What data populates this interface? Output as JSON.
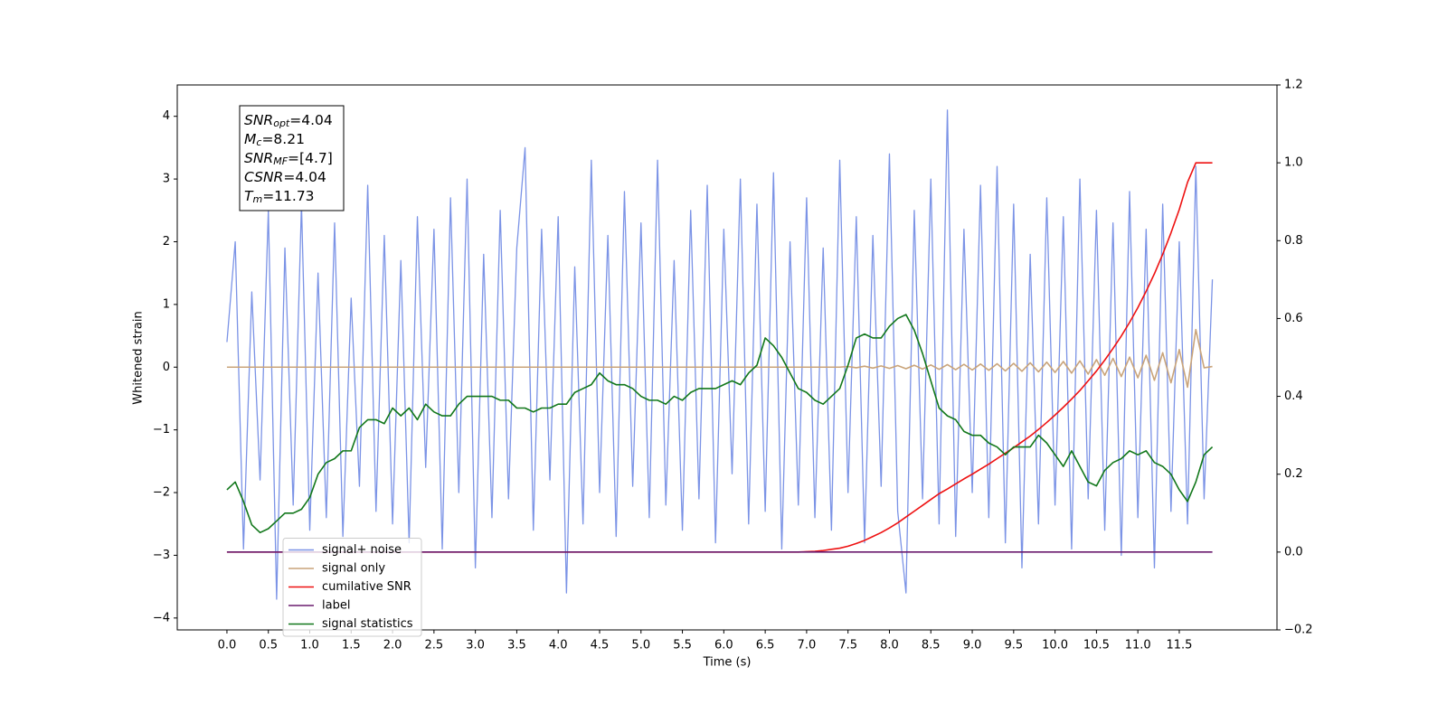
{
  "chart_data": {
    "type": "line",
    "xlabel": "Time (s)",
    "ylabel": "Whitened strain",
    "x": [
      0,
      0.1,
      0.2,
      0.3,
      0.4,
      0.5,
      0.6,
      0.7,
      0.8,
      0.9,
      1.0,
      1.1,
      1.2,
      1.3,
      1.4,
      1.5,
      1.6,
      1.7,
      1.8,
      1.9,
      2.0,
      2.1,
      2.2,
      2.3,
      2.4,
      2.5,
      2.6,
      2.7,
      2.8,
      2.9,
      3.0,
      3.1,
      3.2,
      3.3,
      3.4,
      3.5,
      3.6,
      3.7,
      3.8,
      3.9,
      4.0,
      4.1,
      4.2,
      4.3,
      4.4,
      4.5,
      4.6,
      4.7,
      4.8,
      4.9,
      5.0,
      5.1,
      5.2,
      5.3,
      5.4,
      5.5,
      5.6,
      5.7,
      5.8,
      5.9,
      6.0,
      6.1,
      6.2,
      6.3,
      6.4,
      6.5,
      6.6,
      6.7,
      6.8,
      6.9,
      7.0,
      7.1,
      7.2,
      7.3,
      7.4,
      7.5,
      7.6,
      7.7,
      7.8,
      7.9,
      8.0,
      8.1,
      8.2,
      8.3,
      8.4,
      8.5,
      8.6,
      8.7,
      8.8,
      8.9,
      9.0,
      9.1,
      9.2,
      9.3,
      9.4,
      9.5,
      9.6,
      9.7,
      9.8,
      9.9,
      10.0,
      10.1,
      10.2,
      10.3,
      10.4,
      10.5,
      10.6,
      10.7,
      10.8,
      10.9,
      11.0,
      11.1,
      11.2,
      11.3,
      11.4,
      11.5,
      11.6,
      11.7,
      11.8,
      11.9
    ],
    "series": [
      {
        "name": "signal+ noise",
        "color": "#7b93e6",
        "values": [
          0.4,
          2.0,
          -2.9,
          1.2,
          -1.8,
          2.5,
          -3.7,
          1.9,
          -2.2,
          2.6,
          -2.6,
          1.5,
          -2.4,
          2.3,
          -2.7,
          1.1,
          -1.9,
          2.9,
          -2.3,
          2.1,
          -2.5,
          1.7,
          -2.8,
          2.4,
          -1.6,
          2.2,
          -2.9,
          2.7,
          -2.0,
          3.0,
          -3.2,
          1.8,
          -2.4,
          2.5,
          -2.1,
          1.9,
          3.5,
          -2.6,
          2.2,
          -1.8,
          2.4,
          -3.6,
          1.6,
          -2.5,
          3.3,
          -2.0,
          2.1,
          -2.7,
          2.8,
          -1.9,
          2.3,
          -2.4,
          3.3,
          -2.2,
          1.7,
          -2.6,
          2.5,
          -2.1,
          2.9,
          -2.8,
          2.2,
          -1.7,
          3.0,
          -2.5,
          2.6,
          -2.3,
          3.1,
          -2.9,
          2.0,
          -2.2,
          2.7,
          -2.4,
          1.9,
          -2.6,
          3.3,
          -2.0,
          2.4,
          -2.8,
          2.1,
          -1.9,
          3.4,
          -2.3,
          -3.6,
          2.5,
          -2.1,
          3.0,
          -2.5,
          4.1,
          -2.7,
          2.2,
          -2.0,
          2.9,
          -2.4,
          3.2,
          -2.8,
          2.6,
          -3.2,
          1.8,
          -2.5,
          2.7,
          -2.2,
          2.4,
          -2.9,
          3.0,
          -2.1,
          2.5,
          -2.6,
          2.3,
          -3.0,
          2.8,
          -2.4,
          2.2,
          -3.2,
          2.6,
          -2.3,
          2.0,
          -2.5,
          3.2,
          -2.1,
          1.4
        ]
      },
      {
        "name": "signal only",
        "color": "#c9a47a",
        "values": [
          0,
          0,
          0,
          0,
          0,
          0,
          0,
          0,
          0,
          0,
          0,
          0,
          0,
          0,
          0,
          0,
          0,
          0,
          0,
          0,
          0,
          0,
          0,
          0,
          0,
          0,
          0,
          0,
          0,
          0,
          0,
          0,
          0,
          0,
          0,
          0,
          0,
          0,
          0,
          0,
          0,
          0,
          0,
          0,
          0,
          0,
          0,
          0,
          0,
          0,
          0,
          0,
          0,
          0,
          0,
          0,
          0,
          0,
          0,
          0,
          0,
          0,
          0,
          0,
          0,
          0,
          0,
          0,
          0,
          0,
          0,
          0,
          0,
          0,
          0,
          0.01,
          -0.01,
          0.015,
          -0.015,
          0.02,
          -0.02,
          0.025,
          -0.025,
          0.03,
          -0.03,
          0.035,
          -0.035,
          0.04,
          -0.04,
          0.045,
          -0.045,
          0.05,
          -0.05,
          0.055,
          -0.06,
          0.06,
          -0.065,
          0.07,
          -0.075,
          0.08,
          -0.085,
          0.09,
          -0.095,
          0.1,
          -0.11,
          0.12,
          -0.13,
          0.14,
          -0.15,
          0.16,
          -0.17,
          0.19,
          -0.21,
          0.23,
          -0.25,
          0.28,
          -0.32,
          0.6,
          -0.01,
          0.01
        ]
      },
      {
        "name": "cumilative SNR",
        "color": "#ee1111",
        "axis": "y2",
        "values": [
          0,
          0,
          0,
          0,
          0,
          0,
          0,
          0,
          0,
          0,
          0,
          0,
          0,
          0,
          0,
          0,
          0,
          0,
          0,
          0,
          0,
          0,
          0,
          0,
          0,
          0,
          0,
          0,
          0,
          0,
          0,
          0,
          0,
          0,
          0,
          0,
          0,
          0,
          0,
          0,
          0,
          0,
          0,
          0,
          0,
          0,
          0,
          0,
          0,
          0,
          0,
          0,
          0,
          0,
          0,
          0,
          0,
          0,
          0,
          0,
          0,
          0,
          0,
          0,
          0,
          0,
          0,
          0,
          0,
          0,
          0.001,
          0.002,
          0.004,
          0.007,
          0.01,
          0.015,
          0.022,
          0.03,
          0.04,
          0.05,
          0.062,
          0.075,
          0.09,
          0.105,
          0.12,
          0.135,
          0.15,
          0.162,
          0.175,
          0.188,
          0.2,
          0.213,
          0.226,
          0.24,
          0.254,
          0.268,
          0.283,
          0.298,
          0.315,
          0.333,
          0.352,
          0.372,
          0.393,
          0.415,
          0.44,
          0.465,
          0.493,
          0.523,
          0.555,
          0.59,
          0.628,
          0.67,
          0.715,
          0.765,
          0.82,
          0.88,
          0.95,
          1.0,
          1.0,
          1.0
        ]
      },
      {
        "name": "label",
        "color": "#6a1b6e",
        "axis": "y2",
        "values": [
          0,
          0,
          0,
          0,
          0,
          0,
          0,
          0,
          0,
          0,
          0,
          0,
          0,
          0,
          0,
          0,
          0,
          0,
          0,
          0,
          0,
          0,
          0,
          0,
          0,
          0,
          0,
          0,
          0,
          0,
          0,
          0,
          0,
          0,
          0,
          0,
          0,
          0,
          0,
          0,
          0,
          0,
          0,
          0,
          0,
          0,
          0,
          0,
          0,
          0,
          0,
          0,
          0,
          0,
          0,
          0,
          0,
          0,
          0,
          0,
          0,
          0,
          0,
          0,
          0,
          0,
          0,
          0,
          0,
          0,
          0,
          0,
          0,
          0,
          0,
          0,
          0,
          0,
          0,
          0,
          0,
          0,
          0,
          0,
          0,
          0,
          0,
          0,
          0,
          0,
          0,
          0,
          0,
          0,
          0,
          0,
          0,
          0,
          0,
          0,
          0,
          0,
          0,
          0,
          0,
          0,
          0,
          0,
          0,
          0,
          0,
          0,
          0,
          0,
          0,
          0,
          0,
          0,
          0,
          0
        ]
      },
      {
        "name": "signal statistics",
        "color": "#11771a",
        "axis": "y2",
        "values": [
          0.16,
          0.18,
          0.13,
          0.07,
          0.05,
          0.06,
          0.08,
          0.1,
          0.1,
          0.11,
          0.14,
          0.2,
          0.23,
          0.24,
          0.26,
          0.26,
          0.32,
          0.34,
          0.34,
          0.33,
          0.37,
          0.35,
          0.37,
          0.34,
          0.38,
          0.36,
          0.35,
          0.35,
          0.38,
          0.4,
          0.4,
          0.4,
          0.4,
          0.39,
          0.39,
          0.37,
          0.37,
          0.36,
          0.37,
          0.37,
          0.38,
          0.38,
          0.41,
          0.42,
          0.43,
          0.46,
          0.44,
          0.43,
          0.43,
          0.42,
          0.4,
          0.39,
          0.39,
          0.38,
          0.4,
          0.39,
          0.41,
          0.42,
          0.42,
          0.42,
          0.43,
          0.44,
          0.43,
          0.46,
          0.48,
          0.55,
          0.53,
          0.5,
          0.46,
          0.42,
          0.41,
          0.39,
          0.38,
          0.4,
          0.42,
          0.48,
          0.55,
          0.56,
          0.55,
          0.55,
          0.58,
          0.6,
          0.61,
          0.57,
          0.51,
          0.44,
          0.37,
          0.35,
          0.34,
          0.31,
          0.3,
          0.3,
          0.28,
          0.27,
          0.25,
          0.27,
          0.27,
          0.27,
          0.3,
          0.28,
          0.25,
          0.22,
          0.26,
          0.22,
          0.18,
          0.17,
          0.21,
          0.23,
          0.24,
          0.26,
          0.25,
          0.26,
          0.23,
          0.22,
          0.2,
          0.16,
          0.13,
          0.18,
          0.25,
          0.27
        ]
      }
    ],
    "xlim": [
      -0.6,
      12.68
    ],
    "ylim": [
      -4.19,
      4.5
    ],
    "y2lim": [
      -0.2,
      1.2
    ],
    "xticks": [
      {
        "value": 0,
        "label": "0.0"
      },
      0.5,
      {
        "value": 1,
        "label": "1.0"
      },
      1.5,
      {
        "value": 2,
        "label": "2.0"
      },
      2.5,
      {
        "value": 3,
        "label": "3.0"
      },
      3.5,
      {
        "value": 4,
        "label": "4.0"
      },
      4.5,
      {
        "value": 5,
        "label": "5.0"
      },
      5.5,
      {
        "value": 6,
        "label": "6.0"
      },
      6.5,
      {
        "value": 7,
        "label": "7.0"
      },
      7.5,
      {
        "value": 8,
        "label": "8.0"
      },
      8.5,
      {
        "value": 9,
        "label": "9.0"
      },
      9.5,
      {
        "value": 10,
        "label": "10.0"
      },
      10.5,
      {
        "value": 11,
        "label": "11.0"
      },
      11.5
    ],
    "yticks": [
      {
        "value": -4,
        "label": "−4"
      },
      {
        "value": -3,
        "label": "−3"
      },
      {
        "value": -2,
        "label": "−2"
      },
      {
        "value": -1,
        "label": "−1"
      },
      0,
      1,
      2,
      3,
      4
    ],
    "y2ticks": [
      {
        "value": -0.2,
        "label": "−0.2"
      },
      {
        "value": 0,
        "label": "0.0"
      },
      0.2,
      0.4,
      0.6,
      0.8,
      {
        "value": 1,
        "label": "1.0"
      },
      1.2
    ],
    "legend_loc": "lower left",
    "annotation": [
      {
        "text": "SNR",
        "sub": "opt",
        "value": "=4.04"
      },
      {
        "text": "M",
        "sub": "c",
        "value": "=8.21"
      },
      {
        "text": "SNR",
        "sub": "MF",
        "value": "=[4.7]"
      },
      {
        "text": "CSNR",
        "value": "=4.04"
      },
      {
        "text": "T",
        "sub": "m",
        "value": "=11.73"
      }
    ]
  }
}
